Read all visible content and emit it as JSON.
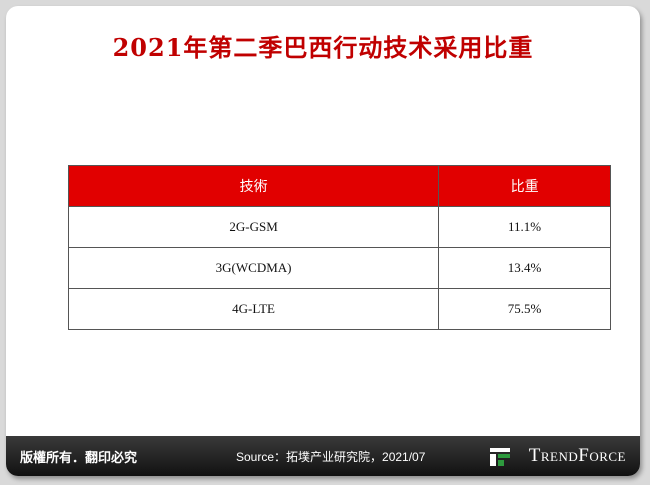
{
  "header": {
    "title": "2021年第二季巴西行动技术采用比重"
  },
  "table": {
    "columns": [
      "技術",
      "比重"
    ],
    "rows": [
      [
        "2G-GSM",
        "11.1%"
      ],
      [
        "3G(WCDMA)",
        "13.4%"
      ],
      [
        "4G-LTE",
        "75.5%"
      ]
    ]
  },
  "footer": {
    "copyright": "版權所有．翻印必究",
    "source": "Source：拓墣产业研究院，2021/07",
    "logo": "TrendForce"
  }
}
